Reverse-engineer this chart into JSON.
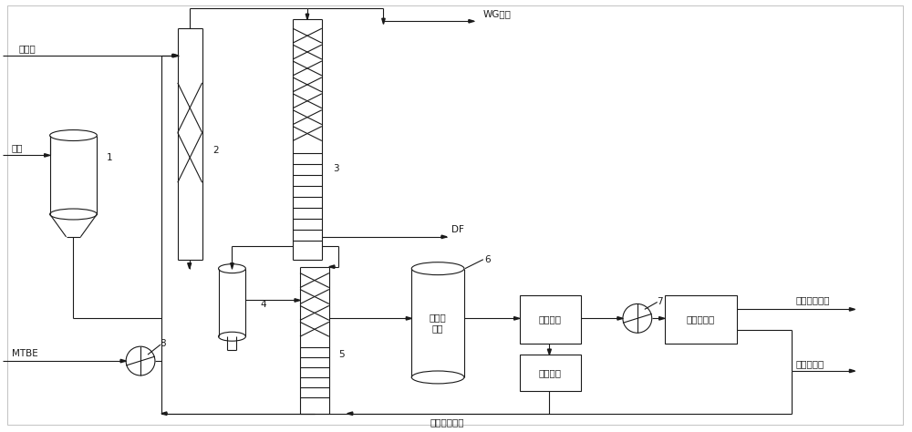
{
  "bg_color": "#ffffff",
  "line_color": "#1a1a1a",
  "lw": 0.8,
  "fs": 7.5,
  "labels": {
    "iso_octanol": "异辛醇",
    "methanol": "甲醇",
    "MTBE": "MTBE",
    "WG": "WG处理",
    "DF": "DF",
    "n1": "1",
    "n2": "2",
    "n3": "3",
    "n4": "4",
    "n5": "5",
    "n6": "6",
    "n7": "7",
    "n8": "8",
    "fluidized": "流化床\n反应",
    "cool_absorb": "冷却吸收",
    "methanol_sep": "甲醇分离",
    "isobutene_sep": "异丁烯分离",
    "recycle_oxidizer": "循环至氧化器",
    "product": "异成二烯产品",
    "isobutene_recycle": "异丁烯循环"
  }
}
